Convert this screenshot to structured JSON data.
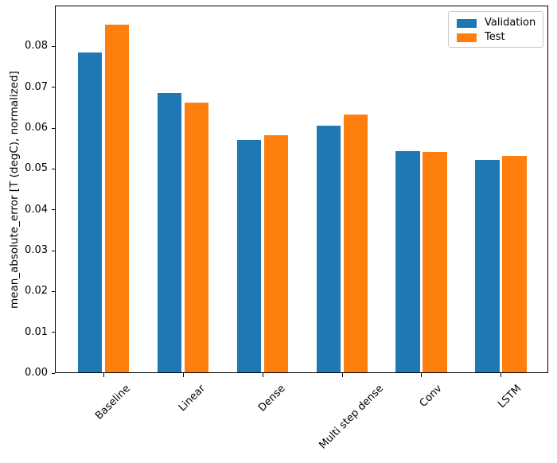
{
  "chart_data": {
    "type": "bar",
    "title": "",
    "xlabel": "",
    "ylabel": "mean_absolute_error [T (degC), normalized]",
    "categories": [
      "Baseline",
      "Linear",
      "Dense",
      "Multi step dense",
      "Conv",
      "LSTM"
    ],
    "series": [
      {
        "name": "Validation",
        "color": "#1f77b4",
        "values": [
          0.0785,
          0.0686,
          0.0571,
          0.0606,
          0.0544,
          0.0523
        ]
      },
      {
        "name": "Test",
        "color": "#ff7f0e",
        "values": [
          0.0853,
          0.0662,
          0.0582,
          0.0634,
          0.0542,
          0.0532
        ]
      }
    ],
    "ylim": [
      0,
      0.09
    ],
    "ytick_labels": [
      "0.00",
      "0.01",
      "0.02",
      "0.03",
      "0.04",
      "0.05",
      "0.06",
      "0.07",
      "0.08"
    ],
    "x_tick_rotation_deg": 45,
    "legend_position": "upper right",
    "grid": false,
    "axis_color": "#000000",
    "background_color": "#ffffff"
  }
}
